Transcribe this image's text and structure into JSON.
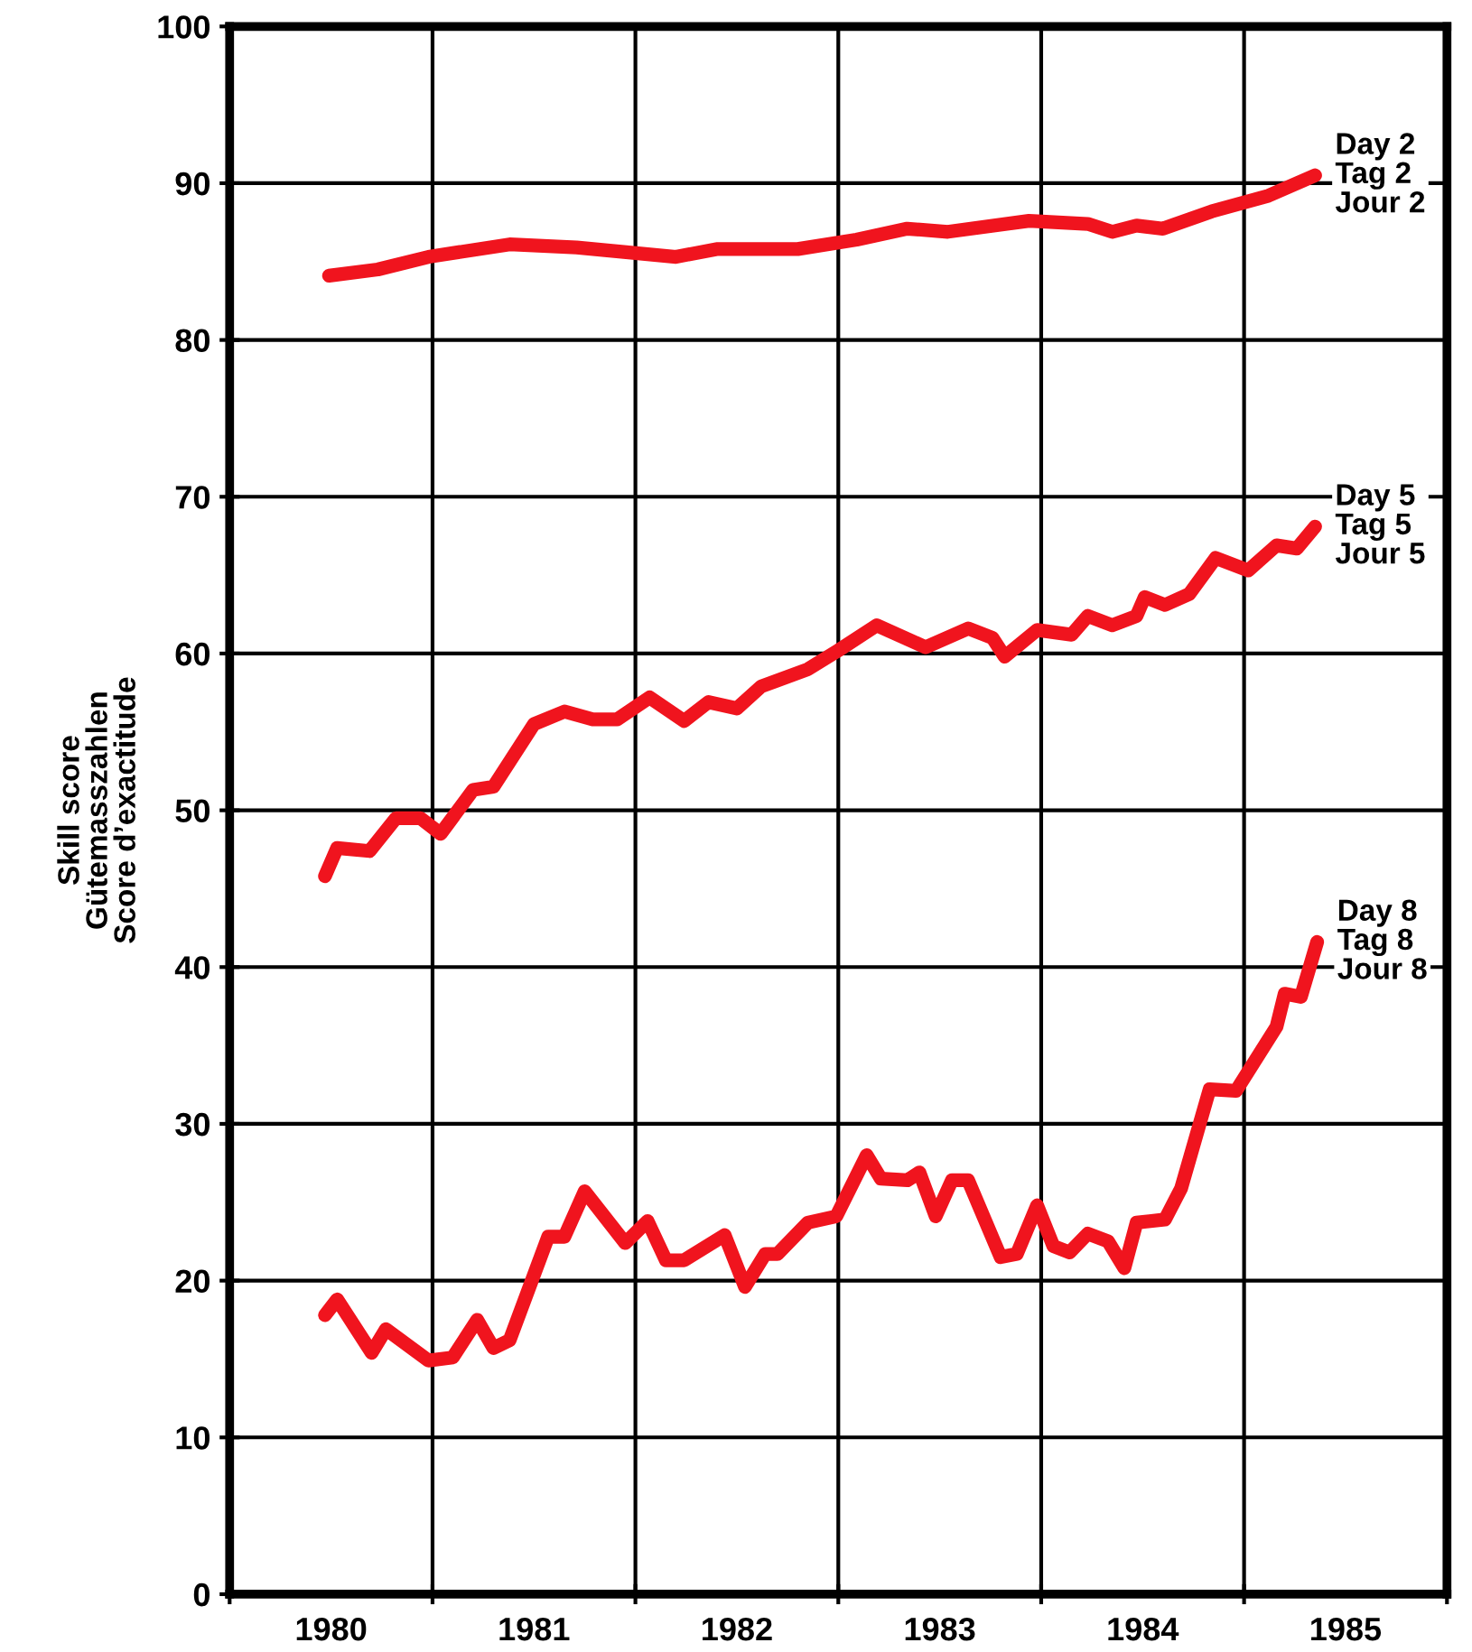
{
  "chart_data": {
    "type": "line",
    "ylabel": "Skill score\nGütemasszahlen\nScore d’exactitude",
    "xlim": [
      1980,
      1986
    ],
    "ylim": [
      0,
      100
    ],
    "xticks": [
      {
        "value": 1980,
        "label": null
      },
      {
        "value": 1980.5,
        "label": "1980"
      },
      {
        "value": 1981,
        "label": null
      },
      {
        "value": 1981.5,
        "label": "1981"
      },
      {
        "value": 1982,
        "label": null
      },
      {
        "value": 1982.5,
        "label": "1982"
      },
      {
        "value": 1983,
        "label": null
      },
      {
        "value": 1983.5,
        "label": "1983"
      },
      {
        "value": 1984,
        "label": null
      },
      {
        "value": 1984.5,
        "label": "1984"
      },
      {
        "value": 1985,
        "label": null
      },
      {
        "value": 1985.5,
        "label": "1985"
      },
      {
        "value": 1986,
        "label": null
      }
    ],
    "yticks": [
      0,
      10,
      20,
      30,
      40,
      50,
      60,
      70,
      80,
      90,
      100
    ],
    "grid": true,
    "legend": false,
    "marker": "none",
    "line_style": "solid",
    "series": [
      {
        "name": "Day 2\nTag 2\nJour 2",
        "color": "#f0141e",
        "x": [
          1980.49,
          1980.73,
          1980.98,
          1981.38,
          1981.71,
          1982.2,
          1982.4,
          1982.8,
          1983.09,
          1983.34,
          1983.54,
          1983.94,
          1984.23,
          1984.35,
          1984.47,
          1984.6,
          1984.84,
          1985.12,
          1985.35
        ],
        "values": [
          84.1,
          84.5,
          85.3,
          86.1,
          85.9,
          85.3,
          85.8,
          85.8,
          86.4,
          87.1,
          86.9,
          87.6,
          87.4,
          86.9,
          87.3,
          87.1,
          88.2,
          89.2,
          90.5
        ]
      },
      {
        "name": "Day 5\nTag 5\nJour 5",
        "color": "#f0141e",
        "x": [
          1980.47,
          1980.53,
          1980.69,
          1980.82,
          1980.94,
          1981.04,
          1981.2,
          1981.3,
          1981.5,
          1981.65,
          1981.79,
          1981.91,
          1982.07,
          1982.24,
          1982.36,
          1982.5,
          1982.62,
          1982.85,
          1983.0,
          1983.19,
          1983.43,
          1983.64,
          1983.76,
          1983.82,
          1983.98,
          1984.15,
          1984.23,
          1984.35,
          1984.47,
          1984.51,
          1984.61,
          1984.73,
          1984.86,
          1985.02,
          1985.16,
          1985.26,
          1985.35
        ],
        "values": [
          45.8,
          47.6,
          47.4,
          49.5,
          49.5,
          48.5,
          51.3,
          51.5,
          55.5,
          56.3,
          55.8,
          55.8,
          57.2,
          55.7,
          56.9,
          56.5,
          57.9,
          59.0,
          60.2,
          61.8,
          60.4,
          61.6,
          61.0,
          59.8,
          61.5,
          61.2,
          62.4,
          61.8,
          62.4,
          63.6,
          63.1,
          63.8,
          66.1,
          65.3,
          66.9,
          66.7,
          68.1
        ]
      },
      {
        "name": "Day 8\nTag 8\nJour 8",
        "color": "#f0141e",
        "x": [
          1980.47,
          1980.53,
          1980.7,
          1980.77,
          1980.98,
          1981.1,
          1981.22,
          1981.3,
          1981.38,
          1981.57,
          1981.65,
          1981.75,
          1981.95,
          1982.06,
          1982.15,
          1982.24,
          1982.44,
          1982.54,
          1982.64,
          1982.7,
          1982.85,
          1982.99,
          1983.14,
          1983.21,
          1983.34,
          1983.4,
          1983.48,
          1983.56,
          1983.64,
          1983.8,
          1983.88,
          1983.98,
          1984.06,
          1984.14,
          1984.23,
          1984.33,
          1984.41,
          1984.47,
          1984.61,
          1984.69,
          1984.83,
          1984.96,
          1985.16,
          1985.2,
          1985.28,
          1985.36
        ],
        "values": [
          17.8,
          18.8,
          15.4,
          16.9,
          14.9,
          15.1,
          17.5,
          15.7,
          16.2,
          22.8,
          22.8,
          25.7,
          22.4,
          23.8,
          21.3,
          21.3,
          22.9,
          19.6,
          21.7,
          21.7,
          23.7,
          24.1,
          28.0,
          26.5,
          26.4,
          26.9,
          24.1,
          26.4,
          26.4,
          21.5,
          21.7,
          24.8,
          22.2,
          21.8,
          23.0,
          22.5,
          20.8,
          23.7,
          23.9,
          25.9,
          32.2,
          32.1,
          36.2,
          38.3,
          38.1,
          41.6
        ]
      }
    ]
  }
}
